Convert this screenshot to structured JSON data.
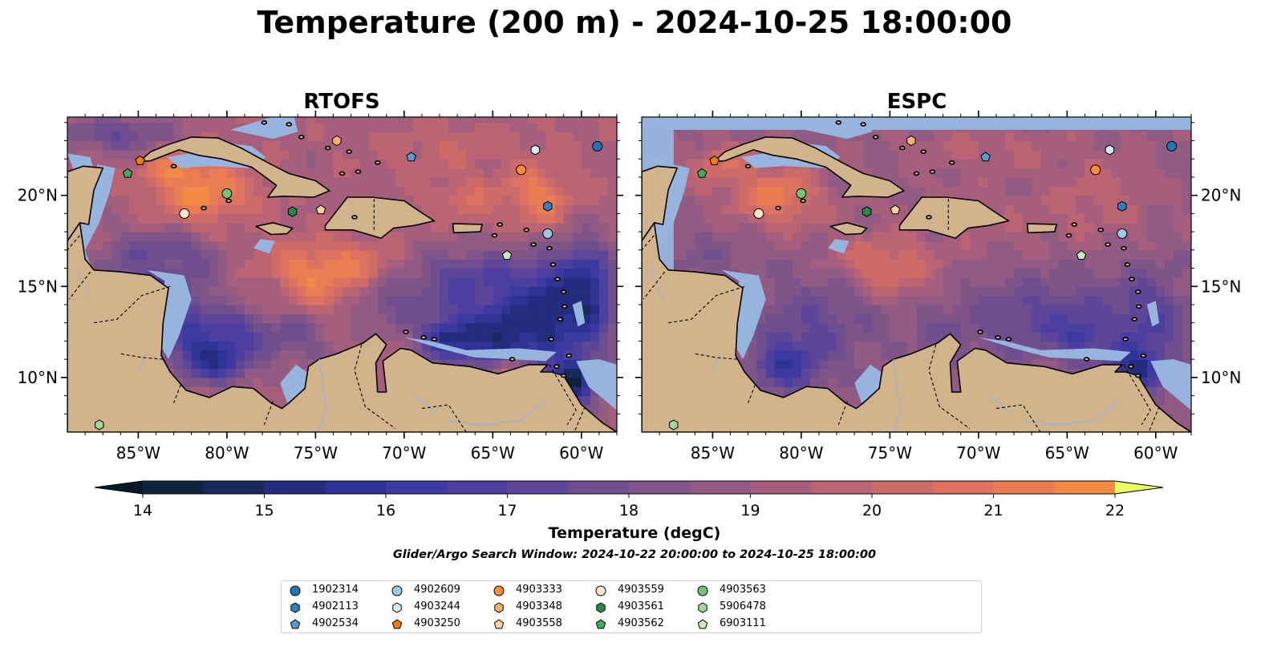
{
  "title": "Temperature (200 m) - 2024-10-25 18:00:00",
  "panels": [
    {
      "title": "RTOFS",
      "model": "rtofs"
    },
    {
      "title": "ESPC",
      "model": "espc"
    }
  ],
  "map": {
    "lon_range": [
      -89,
      -58
    ],
    "lat_range": [
      7,
      24.3
    ],
    "lon_tick_labels": [
      "85°W",
      "80°W",
      "75°W",
      "70°W",
      "65°W",
      "60°W"
    ],
    "lon_ticks": [
      -85,
      -80,
      -75,
      -70,
      -65,
      -60
    ],
    "lat_tick_labels": [
      "10°N",
      "15°N",
      "20°N"
    ],
    "lat_ticks": [
      10,
      15,
      20
    ],
    "colors": {
      "land": "#d2b48c",
      "shelf": "#97b4df",
      "coast": "#000000"
    }
  },
  "colorbar": {
    "label": "Temperature (degC)",
    "min": 14,
    "max": 22,
    "step": 0.5,
    "tick_labels": [
      "14",
      "15",
      "16",
      "17",
      "18",
      "19",
      "20",
      "21",
      "22"
    ],
    "colors": [
      "#0d233e",
      "#182a5b",
      "#232c7e",
      "#2e3493",
      "#3c3aa0",
      "#4d3f9f",
      "#5d4698",
      "#6e4e8f",
      "#7f5589",
      "#915b84",
      "#a55f7c",
      "#ba6474",
      "#cd6b69",
      "#dd7260",
      "#ea7d52",
      "#f28a45",
      "#f69a3c",
      "#f8ac3b",
      "#f8c444",
      "#f4e350",
      "#ecff5c"
    ],
    "under_color": "#06182a",
    "over_color": "#eaff5f"
  },
  "search_window": "Glider/Argo Search Window: 2024-10-22 20:00:00 to 2024-10-25 18:00:00",
  "platforms": [
    {
      "id": "1902314",
      "marker": "circle",
      "color": "#1f77b4",
      "lon": -59.1,
      "lat": 22.7
    },
    {
      "id": "4902113",
      "marker": "hexagon",
      "color": "#2f7fc1",
      "lon": -61.9,
      "lat": 19.4
    },
    {
      "id": "4902534",
      "marker": "pentagon",
      "color": "#5b9bd5",
      "lon": -69.6,
      "lat": 22.1
    },
    {
      "id": "4902609",
      "marker": "circle",
      "color": "#9ecae1",
      "lon": -61.9,
      "lat": 17.9
    },
    {
      "id": "4903244",
      "marker": "hexagon",
      "color": "#d6ebfa",
      "lon": -62.6,
      "lat": 22.5
    },
    {
      "id": "4903250",
      "marker": "pentagon",
      "color": "#f57c00",
      "lon": -84.9,
      "lat": 21.9
    },
    {
      "id": "4903333",
      "marker": "circle",
      "color": "#fd8d3c",
      "lon": -63.4,
      "lat": 21.4
    },
    {
      "id": "4903348",
      "marker": "hexagon",
      "color": "#fdae6b",
      "lon": -73.8,
      "lat": 23.0
    },
    {
      "id": "4903558",
      "marker": "pentagon",
      "color": "#fdd0a2",
      "lon": -74.7,
      "lat": 19.2
    },
    {
      "id": "4903559",
      "marker": "circle",
      "color": "#fee6ce",
      "lon": -82.4,
      "lat": 19.0
    },
    {
      "id": "4903561",
      "marker": "hexagon",
      "color": "#238b45",
      "lon": -76.3,
      "lat": 19.1
    },
    {
      "id": "4903562",
      "marker": "pentagon",
      "color": "#41ab5d",
      "lon": -85.6,
      "lat": 21.2
    },
    {
      "id": "4903563",
      "marker": "circle",
      "color": "#74c476",
      "lon": -80.0,
      "lat": 20.1
    },
    {
      "id": "5906478",
      "marker": "hexagon",
      "color": "#a1d99b",
      "lon": -87.2,
      "lat": 7.4
    },
    {
      "id": "6903111",
      "marker": "pentagon",
      "color": "#c7e9c0",
      "lon": -64.2,
      "lat": 16.7
    }
  ]
}
